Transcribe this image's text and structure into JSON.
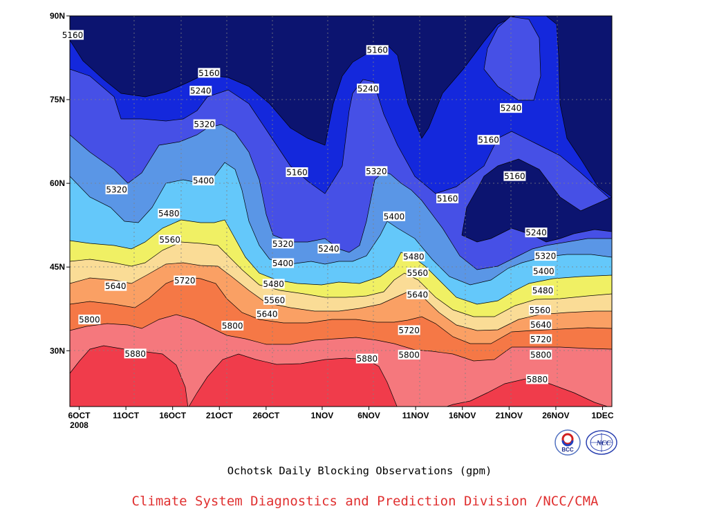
{
  "chart_data": {
    "type": "contour",
    "title": "Ochotsk Daily Blocking Observations (gpm)",
    "x_ticks": [
      {
        "day": 0,
        "label": "6OCT",
        "sublabel": "2008"
      },
      {
        "day": 5,
        "label": "11OCT"
      },
      {
        "day": 10,
        "label": "16OCT"
      },
      {
        "day": 15,
        "label": "21OCT"
      },
      {
        "day": 20,
        "label": "26OCT"
      },
      {
        "day": 26,
        "label": "1NOV"
      },
      {
        "day": 31,
        "label": "6NOV"
      },
      {
        "day": 36,
        "label": "11NOV"
      },
      {
        "day": 41,
        "label": "16NOV"
      },
      {
        "day": 46,
        "label": "21NOV"
      },
      {
        "day": 51,
        "label": "26NOV"
      },
      {
        "day": 56,
        "label": "1DEC"
      }
    ],
    "y_ticks": [
      {
        "lat": 30,
        "label": "30N"
      },
      {
        "lat": 45,
        "label": "45N"
      },
      {
        "lat": 60,
        "label": "60N"
      },
      {
        "lat": 75,
        "label": "75N"
      },
      {
        "lat": 90,
        "label": "90N"
      }
    ],
    "x_range_days": [
      -1,
      57
    ],
    "y_range_lat": [
      20,
      90
    ],
    "grid": true,
    "levels": [
      5160,
      5240,
      5320,
      5400,
      5480,
      5560,
      5640,
      5720,
      5800,
      5880
    ],
    "fill_colors": {
      "below_5160": "#0c1470",
      "5160": "#1428dc",
      "5240": "#4650e6",
      "5320": "#5a96e6",
      "5400": "#64c8fa",
      "5480": "#f0f064",
      "5560": "#fadc96",
      "5640": "#faa064",
      "5720": "#f57846",
      "5800": "#f5787d",
      "5880": "#f03c4b"
    },
    "contour_labels": [
      {
        "day": -0.7,
        "lat": 86.6,
        "text": "5160"
      },
      {
        "day": 13.9,
        "lat": 79.8,
        "text": "5160"
      },
      {
        "day": 31.9,
        "lat": 83.9,
        "text": "5160"
      },
      {
        "day": 13.0,
        "lat": 76.6,
        "text": "5240"
      },
      {
        "day": 30.9,
        "lat": 77.0,
        "text": "5240"
      },
      {
        "day": 46.2,
        "lat": 73.5,
        "text": "5240"
      },
      {
        "day": 13.4,
        "lat": 70.6,
        "text": "5320"
      },
      {
        "day": 43.8,
        "lat": 67.8,
        "text": "5160"
      },
      {
        "day": 23.3,
        "lat": 62.0,
        "text": "5160"
      },
      {
        "day": 31.8,
        "lat": 62.2,
        "text": "5320"
      },
      {
        "day": 46.6,
        "lat": 61.3,
        "text": "5160"
      },
      {
        "day": 4.0,
        "lat": 58.9,
        "text": "5320"
      },
      {
        "day": 13.3,
        "lat": 60.5,
        "text": "5400"
      },
      {
        "day": 9.6,
        "lat": 54.6,
        "text": "5480"
      },
      {
        "day": 33.7,
        "lat": 54.1,
        "text": "5400"
      },
      {
        "day": 39.4,
        "lat": 57.3,
        "text": "5160"
      },
      {
        "day": 48.9,
        "lat": 51.2,
        "text": "5240"
      },
      {
        "day": 21.8,
        "lat": 49.2,
        "text": "5320"
      },
      {
        "day": 26.7,
        "lat": 48.3,
        "text": "5240"
      },
      {
        "day": 9.7,
        "lat": 49.9,
        "text": "5560"
      },
      {
        "day": 35.8,
        "lat": 46.9,
        "text": "5480"
      },
      {
        "day": 49.9,
        "lat": 47.0,
        "text": "5320"
      },
      {
        "day": 21.8,
        "lat": 45.7,
        "text": "5400"
      },
      {
        "day": 36.2,
        "lat": 44.0,
        "text": "5560"
      },
      {
        "day": 49.7,
        "lat": 44.3,
        "text": "5400"
      },
      {
        "day": 3.9,
        "lat": 41.6,
        "text": "5640"
      },
      {
        "day": 11.3,
        "lat": 42.6,
        "text": "5720"
      },
      {
        "day": 20.8,
        "lat": 42.0,
        "text": "5480"
      },
      {
        "day": 36.2,
        "lat": 40.1,
        "text": "5640"
      },
      {
        "day": 49.6,
        "lat": 40.8,
        "text": "5480"
      },
      {
        "day": 20.9,
        "lat": 39.1,
        "text": "5560"
      },
      {
        "day": 49.3,
        "lat": 37.3,
        "text": "5560"
      },
      {
        "day": 1.1,
        "lat": 35.6,
        "text": "5800"
      },
      {
        "day": 20.1,
        "lat": 36.6,
        "text": "5640"
      },
      {
        "day": 49.4,
        "lat": 34.7,
        "text": "5640"
      },
      {
        "day": 16.4,
        "lat": 34.5,
        "text": "5800"
      },
      {
        "day": 35.3,
        "lat": 33.7,
        "text": "5720"
      },
      {
        "day": 49.4,
        "lat": 32.1,
        "text": "5720"
      },
      {
        "day": 6.0,
        "lat": 29.5,
        "text": "5880"
      },
      {
        "day": 30.8,
        "lat": 28.6,
        "text": "5880"
      },
      {
        "day": 35.3,
        "lat": 29.3,
        "text": "5800"
      },
      {
        "day": 49.4,
        "lat": 29.3,
        "text": "5800"
      },
      {
        "day": 49.0,
        "lat": 24.9,
        "text": "5880"
      }
    ]
  },
  "footer": {
    "caption": "Ochotsk Daily Blocking Observations (gpm)",
    "credit": "Climate System Diagnostics and Prediction Division /NCC/CMA",
    "logos": [
      {
        "name": "bcc-logo",
        "text": "BCC"
      },
      {
        "name": "ncc-logo",
        "text": "NCC"
      }
    ]
  }
}
